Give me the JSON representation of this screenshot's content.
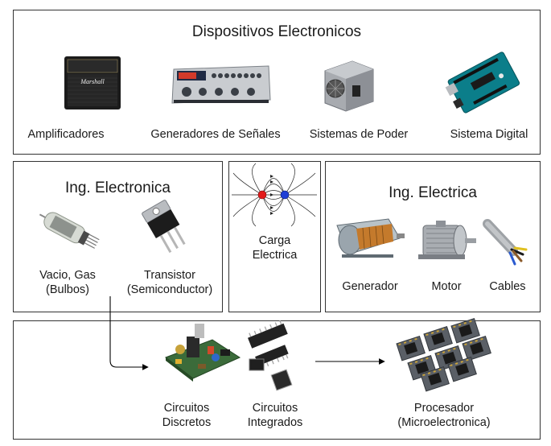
{
  "devices": {
    "title": "Dispositivos Electronicos",
    "items": [
      {
        "label": "Amplificadores",
        "icon": "amplifier-icon"
      },
      {
        "label": "Generadores de Señales",
        "icon": "signal-generator-icon"
      },
      {
        "label": "Sistemas de Poder",
        "icon": "power-supply-icon"
      },
      {
        "label": "Sistema Digital",
        "icon": "microcontroller-board-icon"
      }
    ],
    "amp_brand": "Marshall"
  },
  "electronics": {
    "title": "Ing. Electronica",
    "items": [
      {
        "label_line1": "Vacio, Gas",
        "label_line2": "(Bulbos)",
        "icon": "vacuum-tube-icon"
      },
      {
        "label_line1": "Transistor",
        "label_line2": "(Semiconductor)",
        "icon": "transistor-icon"
      }
    ]
  },
  "charge": {
    "line1": "Carga",
    "line2": "Electrica",
    "icon": "electric-field-icon"
  },
  "electrical": {
    "title": "Ing. Electrica",
    "items": [
      {
        "label": "Generador",
        "icon": "generator-icon"
      },
      {
        "label": "Motor",
        "icon": "motor-icon"
      },
      {
        "label": "Cables",
        "icon": "cables-icon"
      }
    ]
  },
  "bottom": {
    "items": [
      {
        "line1": "Circuitos",
        "line2": "Discretos",
        "icon": "discrete-circuit-icon"
      },
      {
        "line1": "Circuitos",
        "line2": "Integrados",
        "icon": "integrated-circuits-icon"
      },
      {
        "line1": "Procesador",
        "line2": "(Microelectronica)",
        "icon": "processor-icon"
      }
    ]
  },
  "colors": {
    "border": "#333333",
    "positive": "#e31b1b",
    "negative": "#1f3fd6",
    "arrow": "#000000"
  }
}
